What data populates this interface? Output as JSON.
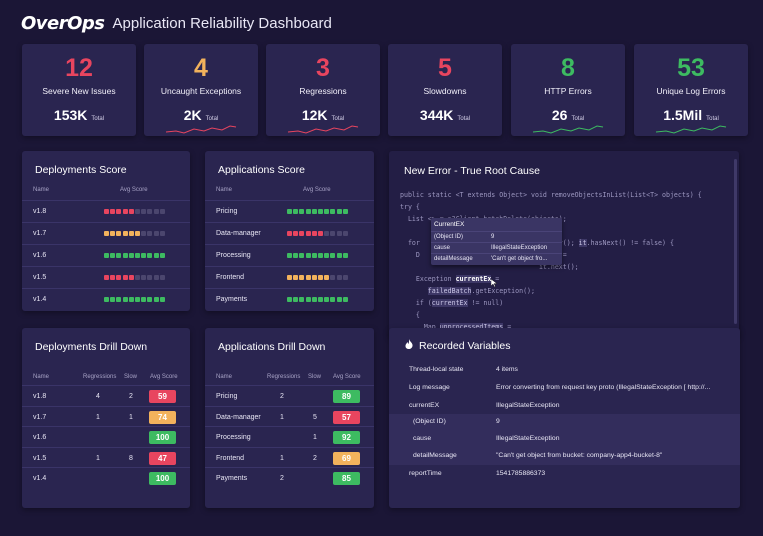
{
  "header": {
    "logo": "OverOps",
    "title": "Application Reliability Dashboard"
  },
  "colors": {
    "red": "#e8455f",
    "orange": "#f2b25c",
    "green": "#3dbb61",
    "gray": "#4b466e",
    "panel": "#2a2550",
    "bg": "#1b1636"
  },
  "cards": [
    {
      "value": "12",
      "label": "Severe New Issues",
      "total_value": "153K",
      "total_label": "Total",
      "color": "#e8455f",
      "spark": false
    },
    {
      "value": "4",
      "label": "Uncaught Exceptions",
      "total_value": "2K",
      "total_label": "Total",
      "color": "#f2b25c",
      "spark": true,
      "spark_color": "#e8455f"
    },
    {
      "value": "3",
      "label": "Regressions",
      "total_value": "12K",
      "total_label": "Total",
      "color": "#e8455f",
      "spark": true,
      "spark_color": "#e8455f"
    },
    {
      "value": "5",
      "label": "Slowdowns",
      "total_value": "344K",
      "total_label": "Total",
      "color": "#e8455f",
      "spark": false
    },
    {
      "value": "8",
      "label": "HTTP Errors",
      "total_value": "26",
      "total_label": "Total",
      "color": "#3dbb61",
      "spark": true,
      "spark_color": "#3dbb61"
    },
    {
      "value": "53",
      "label": "Unique Log Errors",
      "total_value": "1.5Mil",
      "total_label": "Total",
      "color": "#3dbb61",
      "spark": true,
      "spark_color": "#3dbb61"
    }
  ],
  "deployments_score": {
    "title": "Deployments Score",
    "col_name": "Name",
    "col_score": "Avg Score",
    "rows": [
      {
        "name": "v1.8",
        "filled": 5,
        "color": "#e8455f"
      },
      {
        "name": "v1.7",
        "filled": 6,
        "color": "#f2b25c"
      },
      {
        "name": "v1.6",
        "filled": 10,
        "color": "#3dbb61"
      },
      {
        "name": "v1.5",
        "filled": 5,
        "color": "#e8455f"
      },
      {
        "name": "v1.4",
        "filled": 10,
        "color": "#3dbb61"
      }
    ]
  },
  "applications_score": {
    "title": "Applications Score",
    "col_name": "Name",
    "col_score": "Avg Score",
    "rows": [
      {
        "name": "Pricing",
        "filled": 10,
        "color": "#3dbb61"
      },
      {
        "name": "Data-manager",
        "filled": 6,
        "color": "#e8455f"
      },
      {
        "name": "Processing",
        "filled": 10,
        "color": "#3dbb61"
      },
      {
        "name": "Frontend",
        "filled": 7,
        "color": "#f2b25c"
      },
      {
        "name": "Payments",
        "filled": 10,
        "color": "#3dbb61"
      }
    ]
  },
  "deployments_drill": {
    "title": "Deployments Drill Down",
    "cols": [
      "Name",
      "Regressions",
      "Slow",
      "Avg Score"
    ],
    "rows": [
      {
        "name": "v1.8",
        "regressions": "4",
        "slow": "2",
        "score": "59",
        "color": "#e8455f"
      },
      {
        "name": "v1.7",
        "regressions": "1",
        "slow": "1",
        "score": "74",
        "color": "#f2b25c"
      },
      {
        "name": "v1.6",
        "regressions": "",
        "slow": "",
        "score": "100",
        "color": "#3dbb61"
      },
      {
        "name": "v1.5",
        "regressions": "1",
        "slow": "8",
        "score": "47",
        "color": "#e8455f"
      },
      {
        "name": "v1.4",
        "regressions": "",
        "slow": "",
        "score": "100",
        "color": "#3dbb61"
      }
    ]
  },
  "applications_drill": {
    "title": "Applications Drill Down",
    "cols": [
      "Name",
      "Regressions",
      "Slow",
      "Avg Score"
    ],
    "rows": [
      {
        "name": "Pricing",
        "regressions": "2",
        "slow": "",
        "score": "89",
        "color": "#3dbb61"
      },
      {
        "name": "Data-manager",
        "regressions": "1",
        "slow": "5",
        "score": "57",
        "color": "#e8455f"
      },
      {
        "name": "Processing",
        "regressions": "",
        "slow": "1",
        "score": "92",
        "color": "#3dbb61"
      },
      {
        "name": "Frontend",
        "regressions": "1",
        "slow": "2",
        "score": "69",
        "color": "#f2b25c"
      },
      {
        "name": "Payments",
        "regressions": "2",
        "slow": "",
        "score": "85",
        "color": "#3dbb61"
      }
    ]
  },
  "root_cause": {
    "title": "New Error - True Root Cause",
    "tooltip": {
      "title": "CurrentEX",
      "rows": [
        {
          "key": "(Object ID)",
          "value": "9"
        },
        {
          "key": "cause",
          "value": "IllegalStateException"
        },
        {
          "key": "detailMessage",
          "value": "'Can't get object fro..."
        }
      ]
    }
  },
  "recorded_vars": {
    "title": "Recorded Variables",
    "rows": [
      {
        "key": "Thread-local state",
        "value": "4 items"
      },
      {
        "key": "Log message",
        "value": "Error converting from request key proto (IllegalStateException [ http://..."
      },
      {
        "key": "currentEX",
        "value": "IllegalStateException"
      },
      {
        "key": "(Object ID)",
        "value": "9"
      },
      {
        "key": "cause",
        "value": "IllegalStateException"
      },
      {
        "key": "detailMessage",
        "value": "\"Can't get object from bucket: company-app4-bucket-8\""
      },
      {
        "key": "reportTime",
        "value": "1541785886373"
      }
    ]
  }
}
